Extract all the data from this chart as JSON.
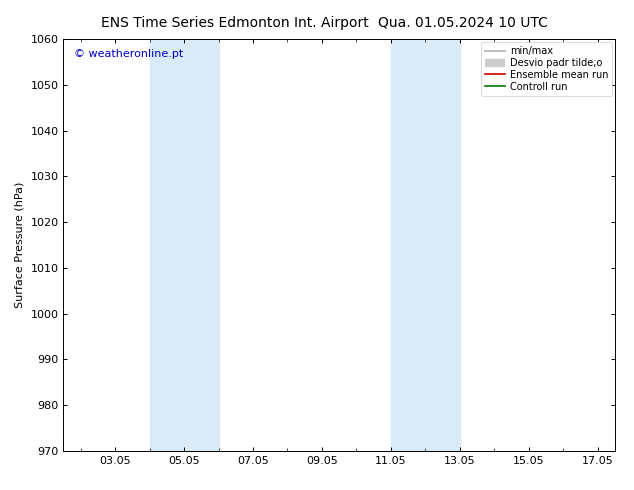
{
  "title_left": "ENS Time Series Edmonton Int. Airport",
  "title_right": "Qua. 01.05.2024 10 UTC",
  "ylabel": "Surface Pressure (hPa)",
  "ylim": [
    970,
    1060
  ],
  "yticks": [
    970,
    980,
    990,
    1000,
    1010,
    1020,
    1030,
    1040,
    1050,
    1060
  ],
  "x_tick_labels": [
    "03.05",
    "05.05",
    "07.05",
    "09.05",
    "11.05",
    "13.05",
    "15.05",
    "17.05"
  ],
  "x_tick_positions": [
    3,
    5,
    7,
    9,
    11,
    13,
    15,
    17
  ],
  "xlim": [
    1.5,
    17.5
  ],
  "shaded_bands": [
    {
      "x_start": 4.0,
      "x_end": 6.0
    },
    {
      "x_start": 11.0,
      "x_end": 13.0
    }
  ],
  "shade_color": "#daeaf7",
  "watermark": "© weatheronline.pt",
  "watermark_color": "#0000cc",
  "legend_entries": [
    {
      "label": "min/max",
      "color": "#b0b0b0",
      "lw": 1.2,
      "linestyle": "-"
    },
    {
      "label": "Desvio padr tilde;o",
      "color": "#cccccc",
      "lw": 6,
      "linestyle": "-"
    },
    {
      "label": "Ensemble mean run",
      "color": "#cc0000",
      "lw": 1.2,
      "linestyle": "-"
    },
    {
      "label": "Controll run",
      "color": "#007700",
      "lw": 1.2,
      "linestyle": "-"
    }
  ],
  "bg_color": "#ffffff",
  "axes_color": "#000000",
  "title_fontsize": 10,
  "label_fontsize": 8,
  "tick_fontsize": 8,
  "legend_fontsize": 7,
  "watermark_fontsize": 8
}
